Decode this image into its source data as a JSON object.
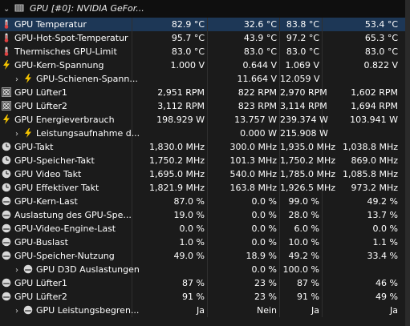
{
  "header": {
    "label": "GPU [#0]: NVIDIA GeFor...",
    "icon": "gpu-chip-icon"
  },
  "rows": [
    {
      "label": "GPU Temperatur",
      "icon": "thermometer-icon",
      "indent": 0,
      "values": [
        "82.9 °C",
        "32.6 °C",
        "83.8 °C",
        "53.4 °C"
      ],
      "selected": true
    },
    {
      "label": "GPU-Hot-Spot-Temperatur",
      "icon": "thermometer-icon",
      "indent": 0,
      "values": [
        "95.7 °C",
        "43.9 °C",
        "97.2 °C",
        "65.3 °C"
      ]
    },
    {
      "label": "Thermisches GPU-Limit",
      "icon": "thermometer-icon",
      "indent": 0,
      "values": [
        "83.0 °C",
        "83.0 °C",
        "83.0 °C",
        "83.0 °C"
      ]
    },
    {
      "label": "GPU-Kern-Spannung",
      "icon": "lightning-icon",
      "indent": 0,
      "values": [
        "1.000 V",
        "0.644 V",
        "1.069 V",
        "0.822 V"
      ]
    },
    {
      "label": "GPU-Schienen-Spann...",
      "icon": "lightning-icon",
      "indent": 1,
      "chevron": true,
      "values": [
        "",
        "11.664 V",
        "12.059 V",
        ""
      ]
    },
    {
      "label": "GPU Lüfter1",
      "icon": "fan-icon",
      "indent": 0,
      "values": [
        "2,951 RPM",
        "822 RPM",
        "2,970 RPM",
        "1,602 RPM"
      ]
    },
    {
      "label": "GPU Lüfter2",
      "icon": "fan-icon",
      "indent": 0,
      "values": [
        "3,112 RPM",
        "823 RPM",
        "3,114 RPM",
        "1,694 RPM"
      ]
    },
    {
      "label": "GPU Energieverbrauch",
      "icon": "lightning-icon",
      "indent": 0,
      "values": [
        "198.929 W",
        "13.757 W",
        "239.374 W",
        "103.941 W"
      ]
    },
    {
      "label": "Leistungsaufnahme d...",
      "icon": "lightning-icon",
      "indent": 1,
      "chevron": true,
      "values": [
        "",
        "0.000 W",
        "215.908 W",
        ""
      ]
    },
    {
      "label": "GPU-Takt",
      "icon": "clock-icon",
      "indent": 0,
      "values": [
        "1,830.0 MHz",
        "300.0 MHz",
        "1,935.0 MHz",
        "1,038.8 MHz"
      ]
    },
    {
      "label": "GPU-Speicher-Takt",
      "icon": "clock-icon",
      "indent": 0,
      "values": [
        "1,750.2 MHz",
        "101.3 MHz",
        "1,750.2 MHz",
        "869.0 MHz"
      ]
    },
    {
      "label": "GPU Video Takt",
      "icon": "clock-icon",
      "indent": 0,
      "values": [
        "1,695.0 MHz",
        "540.0 MHz",
        "1,785.0 MHz",
        "1,085.8 MHz"
      ]
    },
    {
      "label": "GPU Effektiver Takt",
      "icon": "clock-icon",
      "indent": 0,
      "values": [
        "1,821.9 MHz",
        "163.8 MHz",
        "1,926.5 MHz",
        "973.2 MHz"
      ]
    },
    {
      "label": "GPU-Kern-Last",
      "icon": "load-icon",
      "indent": 0,
      "values": [
        "87.0 %",
        "0.0 %",
        "99.0 %",
        "49.2 %"
      ]
    },
    {
      "label": "Auslastung des GPU-Spe...",
      "icon": "load-icon",
      "indent": 0,
      "values": [
        "19.0 %",
        "0.0 %",
        "28.0 %",
        "13.7 %"
      ]
    },
    {
      "label": "GPU-Video-Engine-Last",
      "icon": "load-icon",
      "indent": 0,
      "values": [
        "0.0 %",
        "0.0 %",
        "6.0 %",
        "0.0 %"
      ]
    },
    {
      "label": "GPU-Buslast",
      "icon": "load-icon",
      "indent": 0,
      "values": [
        "1.0 %",
        "0.0 %",
        "10.0 %",
        "1.1 %"
      ]
    },
    {
      "label": "GPU-Speicher-Nutzung",
      "icon": "load-icon",
      "indent": 0,
      "values": [
        "49.0 %",
        "18.9 %",
        "49.2 %",
        "33.4 %"
      ]
    },
    {
      "label": "GPU D3D Auslastungen",
      "icon": "load-icon",
      "indent": 1,
      "chevron": true,
      "values": [
        "",
        "0.0 %",
        "100.0 %",
        ""
      ]
    },
    {
      "label": "GPU Lüfter1",
      "icon": "load-icon",
      "indent": 0,
      "values": [
        "87 %",
        "23 %",
        "87 %",
        "46 %"
      ]
    },
    {
      "label": "GPU Lüfter2",
      "icon": "load-icon",
      "indent": 0,
      "values": [
        "91 %",
        "23 %",
        "91 %",
        "49 %"
      ]
    },
    {
      "label": "GPU Leistungsbegren...",
      "icon": "load-icon",
      "indent": 1,
      "chevron": true,
      "values": [
        "Ja",
        "Nein",
        "Ja",
        "Ja"
      ]
    }
  ],
  "colors": {
    "selected_row": "#1d3756",
    "background": "#1b1b1b",
    "lightning": "#f5c400",
    "thermo": "#5a7fd8"
  }
}
